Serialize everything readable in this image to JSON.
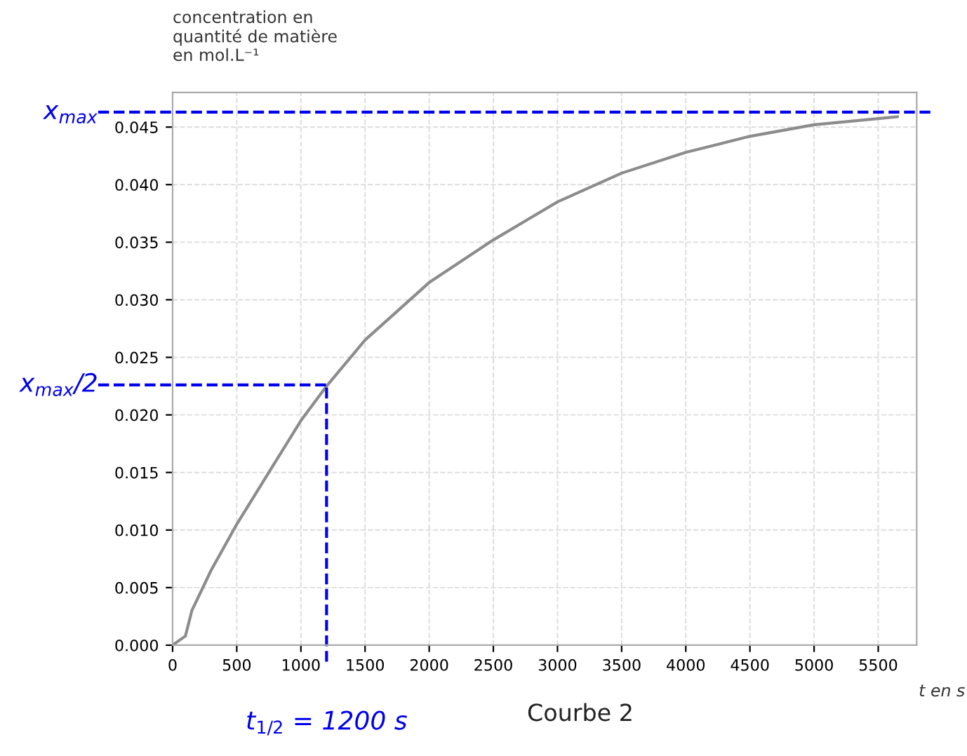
{
  "chart_data": {
    "type": "line",
    "ylabel": "concentration en\nquantité de matière\nen mol.L⁻¹",
    "xlabel": "t en s",
    "x": [
      0,
      100,
      150,
      300,
      500,
      750,
      1000,
      1200,
      1500,
      2000,
      2500,
      3000,
      3500,
      4000,
      4500,
      5000,
      5650
    ],
    "series": [
      {
        "color": "#8c8c8c",
        "values": [
          0,
          0.0008,
          0.003,
          0.0065,
          0.0105,
          0.015,
          0.0195,
          0.0225,
          0.0265,
          0.0315,
          0.0352,
          0.0385,
          0.041,
          0.0428,
          0.0442,
          0.0452,
          0.0459
        ]
      }
    ],
    "xlim": [
      0,
      5800
    ],
    "xticks": [
      0,
      500,
      1000,
      1500,
      2000,
      2500,
      3000,
      3500,
      4000,
      4500,
      5000,
      5500
    ],
    "ylim": [
      0,
      0.048
    ],
    "yticks": [
      {
        "value": 0,
        "label": "0.000"
      },
      {
        "value": 0.005,
        "label": "0.005"
      },
      {
        "value": 0.01,
        "label": "0.010"
      },
      {
        "value": 0.015,
        "label": "0.015"
      },
      {
        "value": 0.02,
        "label": "0.020"
      },
      {
        "value": 0.025,
        "label": "0.025"
      },
      {
        "value": 0.03,
        "label": "0.030"
      },
      {
        "value": 0.035,
        "label": "0.035"
      },
      {
        "value": 0.04,
        "label": "0.040"
      },
      {
        "value": 0.045,
        "label": "0.045"
      }
    ],
    "grid": true,
    "legend": false,
    "marker": "none",
    "line_style": "solid",
    "ref_lines": [
      {
        "axis": "y",
        "value": 0.0463,
        "label": "x$_{max}$",
        "color": "#0000ee",
        "line_style": "dashed"
      },
      {
        "axis": "y",
        "value": 0.0226,
        "label": "x$_{max}$/2",
        "color": "#0000ee",
        "line_style": "dashed"
      },
      {
        "axis": "x",
        "value": 1200,
        "color": "#0000ee",
        "line_style": "dashed"
      }
    ],
    "annotations": [
      {
        "text": "t$_{1/2}$ = 1200 s",
        "x": 1200,
        "y": 0
      },
      "Courbe 2"
    ]
  }
}
